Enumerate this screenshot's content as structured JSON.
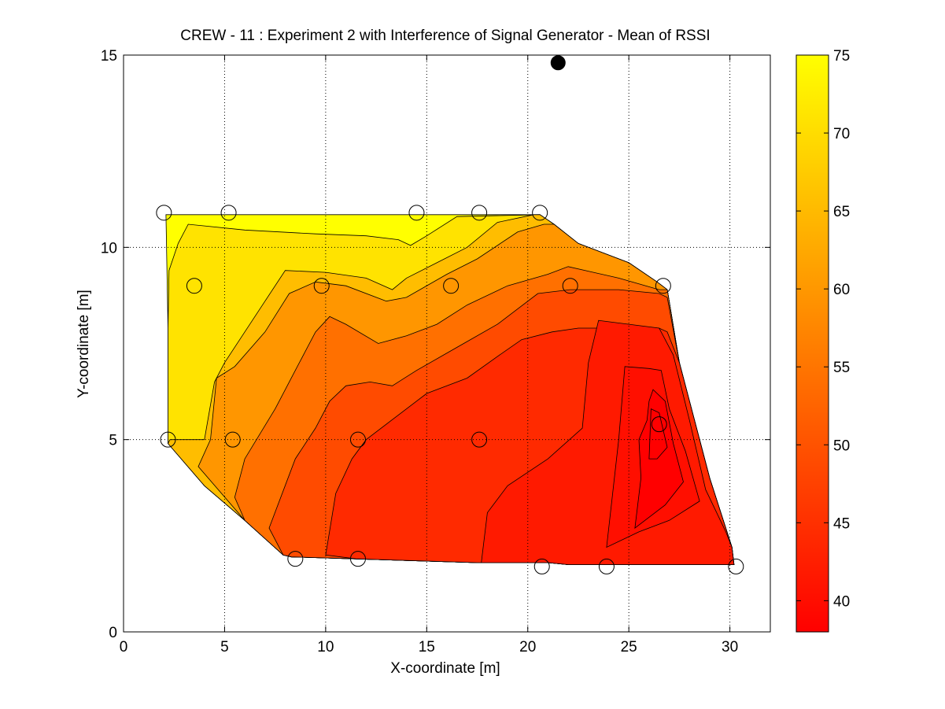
{
  "chart_data": {
    "type": "contour",
    "title": "CREW - 11 : Experiment 2 with Interference of Signal Generator - Mean of RSSI",
    "xlabel": "X-coordinate [m]",
    "ylabel": "Y-coordinate [m]",
    "xlim": [
      0,
      32
    ],
    "ylim": [
      0,
      15
    ],
    "xticks": [
      "0",
      "5",
      "10",
      "15",
      "20",
      "25",
      "30"
    ],
    "yticks": [
      "0",
      "5",
      "10",
      "15"
    ],
    "grid": true,
    "colorbar": {
      "range": [
        38,
        75
      ],
      "ticks": [
        "40",
        "45",
        "50",
        "55",
        "60",
        "65",
        "70",
        "75"
      ],
      "colors": [
        "#ff0000",
        "#ffff00"
      ]
    },
    "contour_levels": [
      {
        "level": 72.5,
        "color": "#ffff00"
      },
      {
        "level": 67.5,
        "color": "#ffe300"
      },
      {
        "level": 62.5,
        "color": "#ffbd00"
      },
      {
        "level": 57.5,
        "color": "#ff9600"
      },
      {
        "level": 52.5,
        "color": "#ff7000"
      },
      {
        "level": 47.5,
        "color": "#ff4b00"
      },
      {
        "level": 42.5,
        "color": "#ff2a00"
      },
      {
        "level": 39,
        "color": "#ff0f00"
      }
    ],
    "sensor_nodes": [
      {
        "x": 2.0,
        "y": 10.9
      },
      {
        "x": 5.2,
        "y": 10.9
      },
      {
        "x": 14.5,
        "y": 10.9
      },
      {
        "x": 17.6,
        "y": 10.9
      },
      {
        "x": 20.6,
        "y": 10.9
      },
      {
        "x": 3.5,
        "y": 9.0
      },
      {
        "x": 9.8,
        "y": 9.0
      },
      {
        "x": 16.2,
        "y": 9.0
      },
      {
        "x": 22.1,
        "y": 9.0
      },
      {
        "x": 26.7,
        "y": 9.0
      },
      {
        "x": 2.2,
        "y": 5.0
      },
      {
        "x": 5.4,
        "y": 5.0
      },
      {
        "x": 11.6,
        "y": 5.0
      },
      {
        "x": 17.6,
        "y": 5.0
      },
      {
        "x": 26.5,
        "y": 5.4
      },
      {
        "x": 8.5,
        "y": 1.9
      },
      {
        "x": 11.6,
        "y": 1.9
      },
      {
        "x": 20.7,
        "y": 1.7
      },
      {
        "x": 23.9,
        "y": 1.7
      },
      {
        "x": 30.3,
        "y": 1.7
      }
    ],
    "signal_generator": {
      "x": 21.5,
      "y": 14.8
    }
  }
}
